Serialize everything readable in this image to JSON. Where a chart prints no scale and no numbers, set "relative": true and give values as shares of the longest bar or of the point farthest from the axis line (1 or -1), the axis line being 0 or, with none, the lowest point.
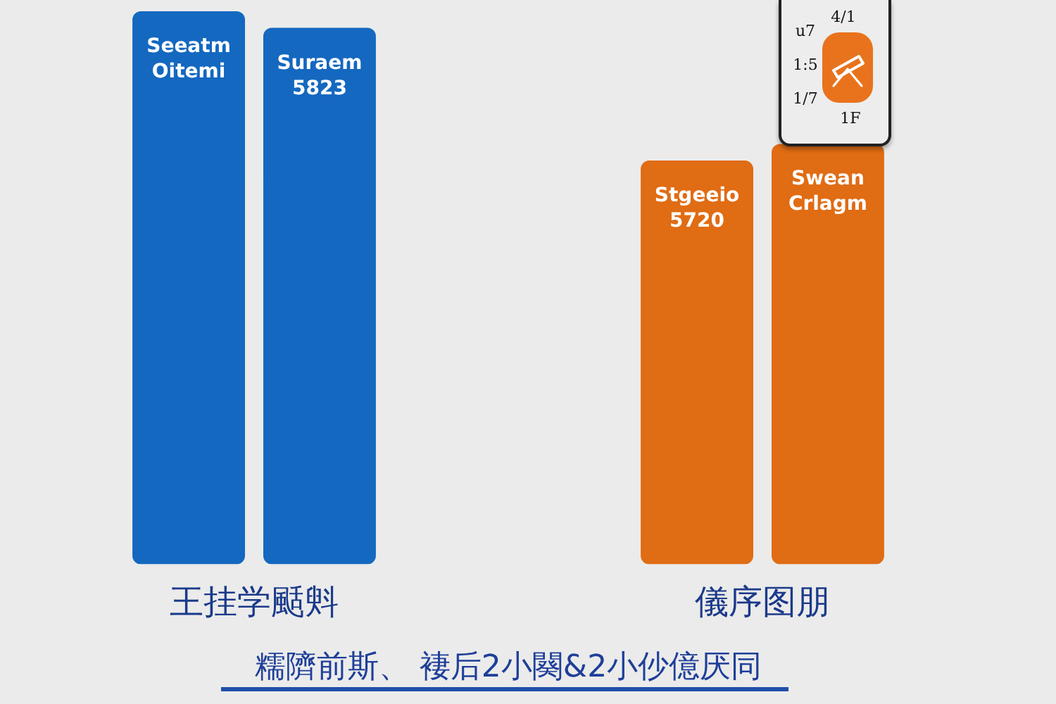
{
  "chart_data": {
    "type": "bar",
    "categories": [
      "王挂学颳斞",
      "儀序图朋"
    ],
    "xlabel": "糯隮前斯、 褄后2小闋&2小仯億厌同",
    "relative": true,
    "series": [
      {
        "colors": [
          "#1468c0",
          "#e06c14"
        ],
        "values": [
          1,
          0.73
        ]
      },
      {
        "colors": [
          "#1468c0",
          "#e06c14"
        ],
        "values": [
          0.97,
          0.76
        ]
      }
    ],
    "annotations": [
      "Seeatm\nOitemi",
      "Suraem\n5823",
      "Stgeeio\n5720",
      "Swean\nCrlagm",
      "4/1",
      "u7",
      "1:5",
      "1/7",
      "1F"
    ]
  }
}
